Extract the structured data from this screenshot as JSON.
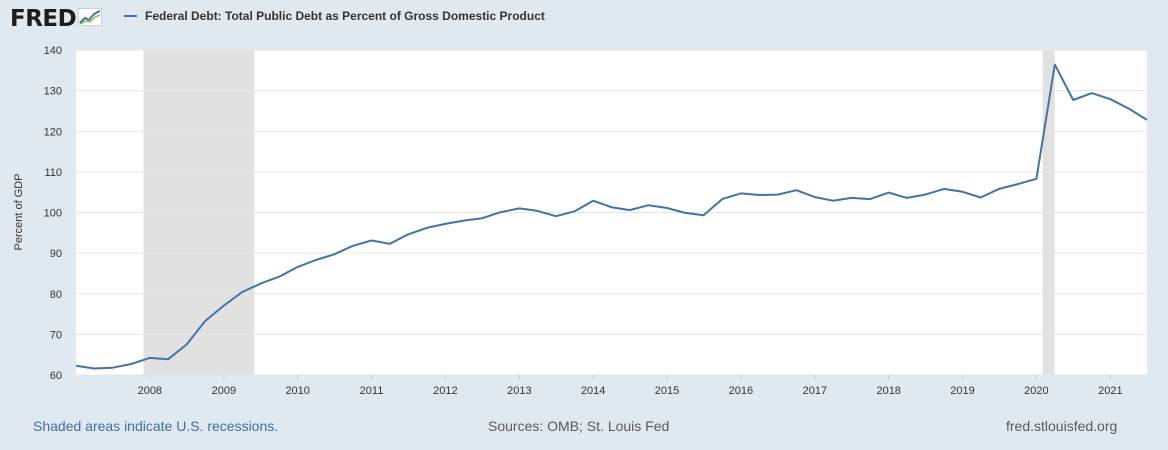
{
  "header": {
    "logo_text": "FRED",
    "logo_icon": "fred-chart-icon",
    "series_title": "Federal Debt: Total Public Debt as Percent of Gross Domestic Product"
  },
  "footer": {
    "recession_note": "Shaded areas indicate U.S. recessions.",
    "sources": "Sources: OMB; St. Louis Fed",
    "url": "fred.stlouisfed.org"
  },
  "colors": {
    "background": "#e1e9f0",
    "plot": "#ffffff",
    "line": "#4572a7",
    "recession": "#e1e1e1",
    "grid": "#e6e6e6"
  },
  "chart_data": {
    "type": "line",
    "title": "Federal Debt: Total Public Debt as Percent of Gross Domestic Product",
    "ylabel": "Percent of GDP",
    "xlabel": "",
    "ylim": [
      60,
      140
    ],
    "xlim": [
      "2007-01-01",
      "2021-07-01"
    ],
    "yticks": [
      60,
      70,
      80,
      90,
      100,
      110,
      120,
      130,
      140
    ],
    "xticks": [
      "2008",
      "2009",
      "2010",
      "2011",
      "2012",
      "2013",
      "2014",
      "2015",
      "2016",
      "2017",
      "2018",
      "2019",
      "2020",
      "2021"
    ],
    "grid": true,
    "legend": "top-left",
    "recessions": [
      [
        "2007-12-01",
        "2009-06-01"
      ],
      [
        "2020-02-01",
        "2020-04-01"
      ]
    ],
    "series": [
      {
        "name": "Federal Debt: Total Public Debt as Percent of Gross Domestic Product",
        "x": [
          "2007-01-01",
          "2007-04-01",
          "2007-07-01",
          "2007-10-01",
          "2008-01-01",
          "2008-04-01",
          "2008-07-01",
          "2008-10-01",
          "2009-01-01",
          "2009-04-01",
          "2009-07-01",
          "2009-10-01",
          "2010-01-01",
          "2010-04-01",
          "2010-07-01",
          "2010-10-01",
          "2011-01-01",
          "2011-04-01",
          "2011-07-01",
          "2011-10-01",
          "2012-01-01",
          "2012-04-01",
          "2012-07-01",
          "2012-10-01",
          "2013-01-01",
          "2013-04-01",
          "2013-07-01",
          "2013-10-01",
          "2014-01-01",
          "2014-04-01",
          "2014-07-01",
          "2014-10-01",
          "2015-01-01",
          "2015-04-01",
          "2015-07-01",
          "2015-10-01",
          "2016-01-01",
          "2016-04-01",
          "2016-07-01",
          "2016-10-01",
          "2017-01-01",
          "2017-04-01",
          "2017-07-01",
          "2017-10-01",
          "2018-01-01",
          "2018-04-01",
          "2018-07-01",
          "2018-10-01",
          "2019-01-01",
          "2019-04-01",
          "2019-07-01",
          "2019-10-01",
          "2020-01-01",
          "2020-04-01",
          "2020-07-01",
          "2020-10-01",
          "2021-01-01",
          "2021-04-01",
          "2021-07-01"
        ],
        "values": [
          62.3,
          61.6,
          61.8,
          62.7,
          64.2,
          63.9,
          67.5,
          73.3,
          77.1,
          80.4,
          82.5,
          84.2,
          86.6,
          88.3,
          89.7,
          91.8,
          93.1,
          92.3,
          94.6,
          96.2,
          97.2,
          98.0,
          98.6,
          100.1,
          101.0,
          100.4,
          99.1,
          100.3,
          102.9,
          101.3,
          100.6,
          101.8,
          101.1,
          99.9,
          99.3,
          103.3,
          104.7,
          104.3,
          104.4,
          105.5,
          103.8,
          102.9,
          103.6,
          103.3,
          104.9,
          103.6,
          104.4,
          105.8,
          105.1,
          103.7,
          105.8,
          107.0,
          108.3,
          136.4,
          127.7,
          129.4,
          127.9,
          125.6,
          122.8
        ]
      }
    ]
  }
}
